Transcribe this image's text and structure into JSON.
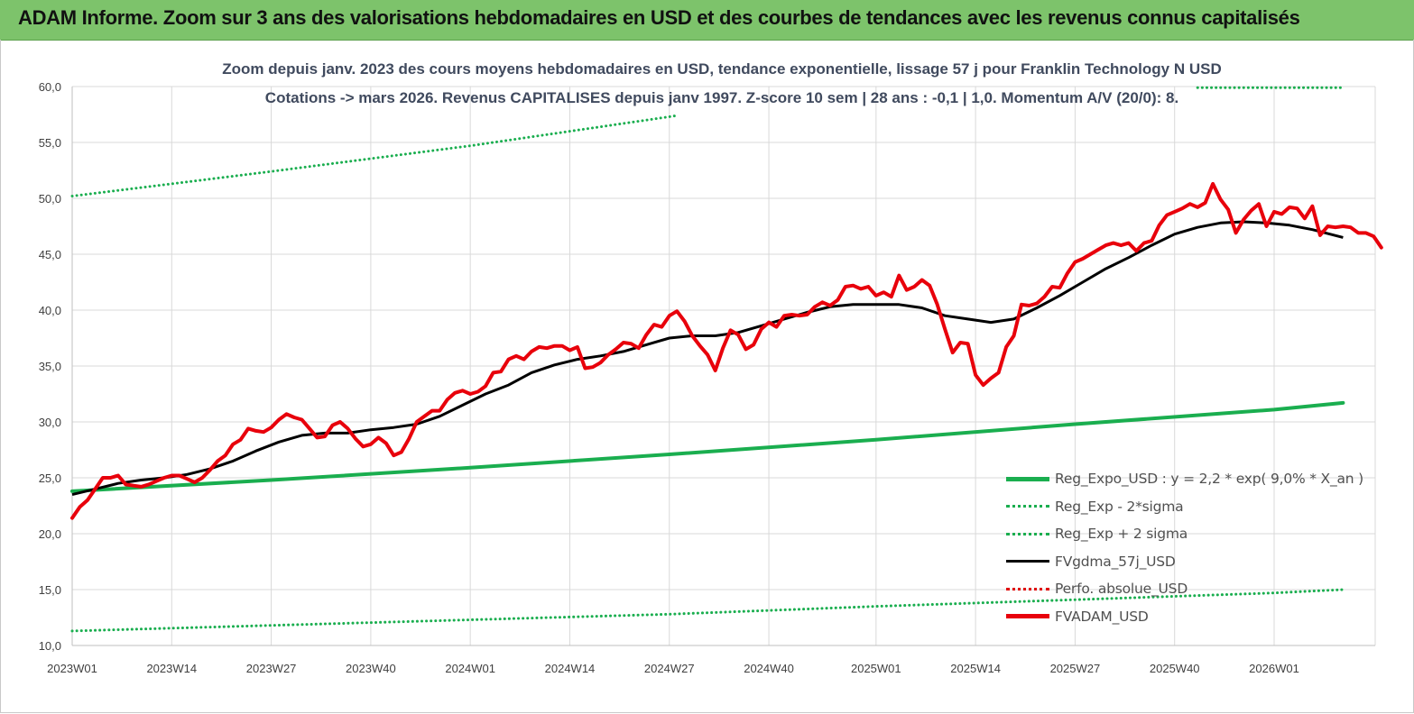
{
  "banner": {
    "title": "ADAM Informe. Zoom sur 3 ans des valorisations hebdomadaires en USD et des courbes de tendances avec les revenus connus capitalisés"
  },
  "chart_data": {
    "type": "line",
    "title_line1": "Zoom depuis janv. 2023 des cours moyens hebdomadaires en USD, tendance exponentielle, lissage 57 j pour Franklin Technology N USD",
    "title_line2": "Cotations -> mars 2026. Revenus CAPITALISES depuis janv 1997. Z-score 10 sem | 28 ans : -0,1 | 1,0. Momentum A/V (20/0): 8.",
    "ylim": [
      10,
      60
    ],
    "yticks": [
      "10,0",
      "15,0",
      "20,0",
      "25,0",
      "30,0",
      "35,0",
      "40,0",
      "45,0",
      "50,0",
      "55,0",
      "60,0"
    ],
    "x_range_weeks": [
      0,
      166
    ],
    "xticks": [
      {
        "label": "2023W01",
        "week": 0
      },
      {
        "label": "2023W14",
        "week": 13
      },
      {
        "label": "2023W27",
        "week": 26
      },
      {
        "label": "2023W40",
        "week": 39
      },
      {
        "label": "2024W01",
        "week": 52
      },
      {
        "label": "2024W14",
        "week": 65
      },
      {
        "label": "2024W27",
        "week": 78
      },
      {
        "label": "2024W40",
        "week": 91
      },
      {
        "label": "2025W01",
        "week": 105
      },
      {
        "label": "2025W14",
        "week": 118
      },
      {
        "label": "2025W27",
        "week": 131
      },
      {
        "label": "2025W40",
        "week": 144
      },
      {
        "label": "2026W01",
        "week": 157
      }
    ],
    "grid": true,
    "legend_position": "bottom-right",
    "series": [
      {
        "name": "Reg_Expo_USD : y = 2,2 * exp( 9,0% * X_an )",
        "color": "#1aae4f",
        "style": "solid-thick",
        "points": [
          [
            0,
            23.8
          ],
          [
            26,
            24.8
          ],
          [
            52,
            25.9
          ],
          [
            78,
            27.1
          ],
          [
            105,
            28.4
          ],
          [
            131,
            29.8
          ],
          [
            157,
            31.1
          ],
          [
            166,
            31.7
          ]
        ]
      },
      {
        "name": "Reg_Exp - 2*sigma",
        "color": "#1aae4f",
        "style": "dotted",
        "points": [
          [
            0,
            11.3
          ],
          [
            26,
            11.8
          ],
          [
            52,
            12.3
          ],
          [
            78,
            12.8
          ],
          [
            105,
            13.5
          ],
          [
            131,
            14.1
          ],
          [
            157,
            14.7
          ],
          [
            166,
            15.0
          ]
        ]
      },
      {
        "name": "Reg_Exp + 2 sigma",
        "color": "#1aae4f",
        "style": "dotted",
        "points": [
          [
            0,
            50.2
          ],
          [
            26,
            52.4
          ],
          [
            52,
            54.7
          ],
          [
            78,
            57.3
          ],
          [
            79,
            57.4
          ],
          [
            null,
            null
          ],
          [
            147,
            59.9
          ],
          [
            166,
            59.9
          ]
        ]
      },
      {
        "name": "FVgdma_57j_USD",
        "color": "#000000",
        "style": "solid",
        "points": [
          [
            0,
            23.5
          ],
          [
            3,
            24.0
          ],
          [
            6,
            24.5
          ],
          [
            9,
            24.8
          ],
          [
            12,
            25.0
          ],
          [
            15,
            25.3
          ],
          [
            18,
            25.8
          ],
          [
            21,
            26.5
          ],
          [
            24,
            27.4
          ],
          [
            27,
            28.2
          ],
          [
            30,
            28.8
          ],
          [
            33,
            29.0
          ],
          [
            36,
            29.0
          ],
          [
            39,
            29.3
          ],
          [
            42,
            29.5
          ],
          [
            45,
            29.8
          ],
          [
            48,
            30.5
          ],
          [
            51,
            31.5
          ],
          [
            54,
            32.5
          ],
          [
            57,
            33.3
          ],
          [
            60,
            34.4
          ],
          [
            63,
            35.1
          ],
          [
            66,
            35.6
          ],
          [
            69,
            35.9
          ],
          [
            72,
            36.3
          ],
          [
            75,
            36.9
          ],
          [
            78,
            37.5
          ],
          [
            81,
            37.7
          ],
          [
            84,
            37.7
          ],
          [
            87,
            38.0
          ],
          [
            90,
            38.6
          ],
          [
            93,
            39.2
          ],
          [
            96,
            39.8
          ],
          [
            99,
            40.3
          ],
          [
            102,
            40.5
          ],
          [
            105,
            40.5
          ],
          [
            108,
            40.5
          ],
          [
            111,
            40.2
          ],
          [
            114,
            39.5
          ],
          [
            117,
            39.2
          ],
          [
            120,
            38.9
          ],
          [
            123,
            39.2
          ],
          [
            126,
            40.2
          ],
          [
            129,
            41.3
          ],
          [
            132,
            42.5
          ],
          [
            135,
            43.7
          ],
          [
            138,
            44.7
          ],
          [
            141,
            45.8
          ],
          [
            144,
            46.8
          ],
          [
            147,
            47.4
          ],
          [
            150,
            47.8
          ],
          [
            153,
            47.9
          ],
          [
            156,
            47.8
          ],
          [
            159,
            47.6
          ],
          [
            162,
            47.2
          ],
          [
            166,
            46.5
          ]
        ]
      },
      {
        "name": "Perfo. absolue_USD",
        "color": "#e00000",
        "style": "dotted",
        "points": []
      },
      {
        "name": "FVADAM_USD",
        "color": "#e8000b",
        "style": "solid-thick",
        "points": [
          [
            0,
            21.4
          ],
          [
            1,
            22.4
          ],
          [
            2,
            23.0
          ],
          [
            3,
            24.0
          ],
          [
            4,
            25.0
          ],
          [
            5,
            25.0
          ],
          [
            6,
            25.2
          ],
          [
            7,
            24.4
          ],
          [
            8,
            24.3
          ],
          [
            9,
            24.2
          ],
          [
            10,
            24.4
          ],
          [
            11,
            24.7
          ],
          [
            12,
            25.0
          ],
          [
            13,
            25.2
          ],
          [
            14,
            25.2
          ],
          [
            15,
            24.9
          ],
          [
            16,
            24.6
          ],
          [
            17,
            25.0
          ],
          [
            18,
            25.7
          ],
          [
            19,
            26.5
          ],
          [
            20,
            27.0
          ],
          [
            21,
            28.0
          ],
          [
            22,
            28.4
          ],
          [
            23,
            29.4
          ],
          [
            24,
            29.2
          ],
          [
            25,
            29.1
          ],
          [
            26,
            29.5
          ],
          [
            27,
            30.2
          ],
          [
            28,
            30.7
          ],
          [
            29,
            30.4
          ],
          [
            30,
            30.2
          ],
          [
            31,
            29.4
          ],
          [
            32,
            28.6
          ],
          [
            33,
            28.7
          ],
          [
            34,
            29.7
          ],
          [
            35,
            30.0
          ],
          [
            36,
            29.4
          ],
          [
            37,
            28.5
          ],
          [
            38,
            27.8
          ],
          [
            39,
            28.0
          ],
          [
            40,
            28.6
          ],
          [
            41,
            28.1
          ],
          [
            42,
            27.0
          ],
          [
            43,
            27.3
          ],
          [
            44,
            28.5
          ],
          [
            45,
            30.0
          ],
          [
            46,
            30.5
          ],
          [
            47,
            31.0
          ],
          [
            48,
            31.0
          ],
          [
            49,
            32.0
          ],
          [
            50,
            32.6
          ],
          [
            51,
            32.8
          ],
          [
            52,
            32.5
          ],
          [
            53,
            32.7
          ],
          [
            54,
            33.2
          ],
          [
            55,
            34.4
          ],
          [
            56,
            34.5
          ],
          [
            57,
            35.6
          ],
          [
            58,
            35.9
          ],
          [
            59,
            35.6
          ],
          [
            60,
            36.3
          ],
          [
            61,
            36.7
          ],
          [
            62,
            36.6
          ],
          [
            63,
            36.8
          ],
          [
            64,
            36.8
          ],
          [
            65,
            36.4
          ],
          [
            66,
            36.7
          ],
          [
            67,
            34.8
          ],
          [
            68,
            34.9
          ],
          [
            69,
            35.3
          ],
          [
            70,
            36.0
          ],
          [
            71,
            36.5
          ],
          [
            72,
            37.1
          ],
          [
            73,
            37.0
          ],
          [
            74,
            36.6
          ],
          [
            75,
            37.8
          ],
          [
            76,
            38.7
          ],
          [
            77,
            38.5
          ],
          [
            78,
            39.5
          ],
          [
            79,
            39.9
          ],
          [
            80,
            39.0
          ],
          [
            81,
            37.7
          ],
          [
            82,
            36.8
          ],
          [
            83,
            36.0
          ],
          [
            84,
            34.6
          ],
          [
            85,
            36.6
          ],
          [
            86,
            38.2
          ],
          [
            87,
            37.8
          ],
          [
            88,
            36.5
          ],
          [
            89,
            36.9
          ],
          [
            90,
            38.3
          ],
          [
            91,
            38.9
          ],
          [
            92,
            38.5
          ],
          [
            93,
            39.5
          ],
          [
            94,
            39.6
          ],
          [
            95,
            39.5
          ],
          [
            96,
            39.6
          ],
          [
            97,
            40.3
          ],
          [
            98,
            40.7
          ],
          [
            99,
            40.4
          ],
          [
            100,
            40.9
          ],
          [
            101,
            42.1
          ],
          [
            102,
            42.2
          ],
          [
            103,
            41.9
          ],
          [
            104,
            42.1
          ],
          [
            105,
            41.3
          ],
          [
            106,
            41.6
          ],
          [
            107,
            41.2
          ],
          [
            108,
            43.1
          ],
          [
            109,
            41.8
          ],
          [
            110,
            42.1
          ],
          [
            111,
            42.7
          ],
          [
            112,
            42.2
          ],
          [
            113,
            40.5
          ],
          [
            114,
            38.3
          ],
          [
            115,
            36.2
          ],
          [
            116,
            37.1
          ],
          [
            117,
            37.0
          ],
          [
            118,
            34.2
          ],
          [
            119,
            33.3
          ],
          [
            120,
            33.9
          ],
          [
            121,
            34.4
          ],
          [
            122,
            36.7
          ],
          [
            123,
            37.7
          ],
          [
            124,
            40.5
          ],
          [
            125,
            40.4
          ],
          [
            126,
            40.6
          ],
          [
            127,
            41.2
          ],
          [
            128,
            42.1
          ],
          [
            129,
            42.0
          ],
          [
            130,
            43.3
          ],
          [
            131,
            44.3
          ],
          [
            132,
            44.6
          ],
          [
            133,
            45.0
          ],
          [
            134,
            45.4
          ],
          [
            135,
            45.8
          ],
          [
            136,
            46.0
          ],
          [
            137,
            45.8
          ],
          [
            138,
            46.0
          ],
          [
            139,
            45.3
          ],
          [
            140,
            46.0
          ],
          [
            141,
            46.2
          ],
          [
            142,
            47.6
          ],
          [
            143,
            48.5
          ],
          [
            144,
            48.8
          ],
          [
            145,
            49.1
          ],
          [
            146,
            49.5
          ],
          [
            147,
            49.2
          ],
          [
            148,
            49.6
          ],
          [
            149,
            51.3
          ],
          [
            150,
            49.9
          ],
          [
            151,
            49.0
          ],
          [
            152,
            46.9
          ],
          [
            153,
            48.1
          ],
          [
            154,
            48.9
          ],
          [
            155,
            49.5
          ],
          [
            156,
            47.5
          ],
          [
            157,
            48.8
          ],
          [
            158,
            48.6
          ],
          [
            159,
            49.2
          ],
          [
            160,
            49.1
          ],
          [
            161,
            48.2
          ],
          [
            162,
            49.3
          ],
          [
            163,
            46.7
          ],
          [
            164,
            47.5
          ],
          [
            165,
            47.4
          ],
          [
            166,
            47.5
          ],
          [
            167,
            47.4
          ],
          [
            168,
            46.9
          ],
          [
            169,
            46.9
          ],
          [
            170,
            46.6
          ],
          [
            171,
            45.6
          ]
        ]
      }
    ]
  }
}
